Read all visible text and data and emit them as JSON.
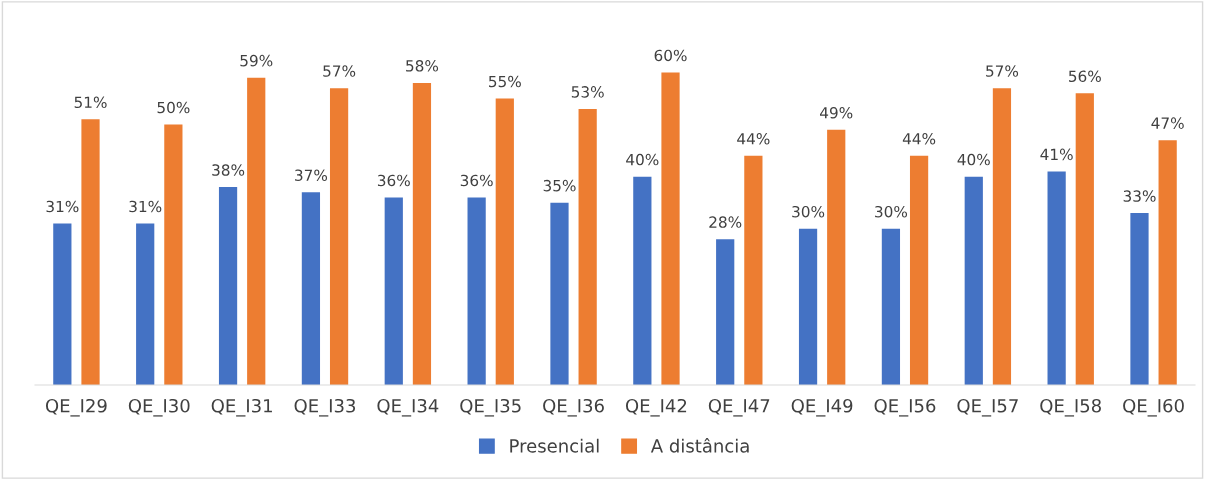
{
  "chart_data": {
    "type": "bar",
    "categories": [
      "QE_I29",
      "QE_I30",
      "QE_I31",
      "QE_I33",
      "QE_I34",
      "QE_I35",
      "QE_I36",
      "QE_I42",
      "QE_I47",
      "QE_I49",
      "QE_I56",
      "QE_I57",
      "QE_I58",
      "QE_I60"
    ],
    "series": [
      {
        "name": "Presencial",
        "color": "#4472c4",
        "values": [
          31,
          31,
          38,
          37,
          36,
          36,
          35,
          40,
          28,
          30,
          30,
          40,
          41,
          33
        ],
        "value_labels": [
          "31%",
          "31%",
          "38%",
          "37%",
          "36%",
          "36%",
          "35%",
          "40%",
          "28%",
          "30%",
          "30%",
          "40%",
          "41%",
          "33%"
        ]
      },
      {
        "name": "A distância",
        "color": "#ed7d31",
        "values": [
          51,
          50,
          59,
          57,
          58,
          55,
          53,
          60,
          44,
          49,
          44,
          57,
          56,
          47
        ],
        "value_labels": [
          "51%",
          "50%",
          "59%",
          "57%",
          "58%",
          "55%",
          "53%",
          "60%",
          "44%",
          "49%",
          "44%",
          "57%",
          "56%",
          "47%"
        ]
      }
    ],
    "legend": "bottom",
    "grid": false
  }
}
